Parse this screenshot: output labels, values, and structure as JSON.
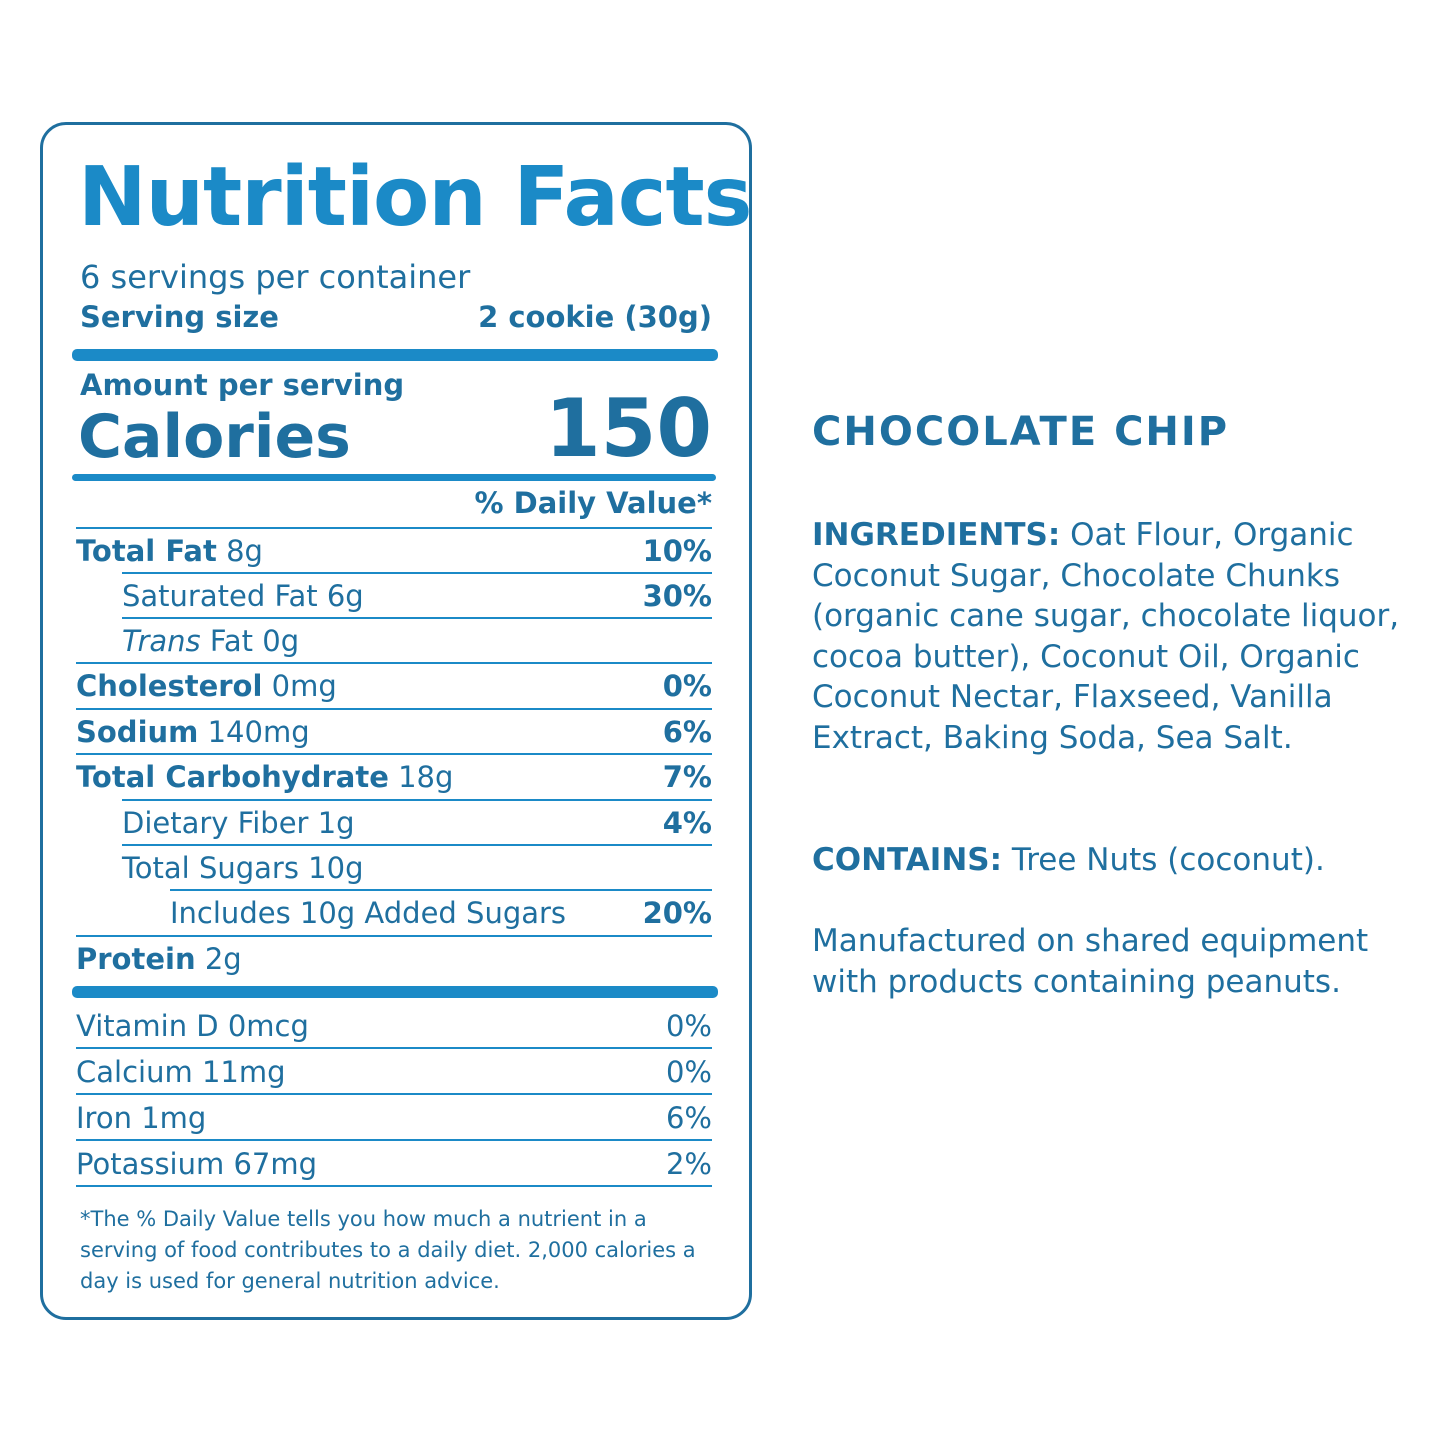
{
  "label": {
    "title": "Nutrition Facts",
    "servings_per_container": "6 servings per container",
    "serving_size_label": "Serving size",
    "serving_size_value": "2 cookie (30g)",
    "amount_per_serving": "Amount per serving",
    "calories_label": "Calories",
    "calories_value": "150",
    "daily_value_header": "% Daily Value*",
    "nutrients": [
      {
        "name": "Total Fat",
        "amount": "8g",
        "dv": "10%"
      },
      {
        "name": "Saturated Fat",
        "amount": "6g",
        "dv": "30%"
      },
      {
        "name_italic": "Trans",
        "name": "Fat",
        "amount": "0g",
        "dv": ""
      },
      {
        "name": "Cholesterol",
        "amount": "0mg",
        "dv": "0%"
      },
      {
        "name": "Sodium",
        "amount": "140mg",
        "dv": "6%"
      },
      {
        "name": "Total Carbohydrate",
        "amount": "18g",
        "dv": "7%"
      },
      {
        "name": "Dietary Fiber",
        "amount": "1g",
        "dv": "4%"
      },
      {
        "name": "Total Sugars",
        "amount": "10g",
        "dv": ""
      },
      {
        "name": "Includes 10g Added Sugars",
        "amount": "",
        "dv": "20%"
      },
      {
        "name": "Protein",
        "amount": "2g",
        "dv": ""
      }
    ],
    "vitamins": [
      {
        "name": "Vitamin D",
        "amount": "0mcg",
        "dv": "0%"
      },
      {
        "name": "Calcium",
        "amount": "11mg",
        "dv": "0%"
      },
      {
        "name": "Iron",
        "amount": "1mg",
        "dv": "6%"
      },
      {
        "name": "Potassium",
        "amount": "67mg",
        "dv": "2%"
      }
    ],
    "footnote": "*The % Daily Value tells you how much a nutrient in a serving of food contributes to a daily diet. 2,000 calories a day is used for general nutrition advice."
  },
  "product": {
    "flavor": "CHOCOLATE CHIP",
    "ingredients_label": "INGREDIENTS:",
    "ingredients": "Oat Flour, Organic Coconut Sugar, Chocolate Chunks (organic cane sugar, chocolate liquor, cocoa butter), Coconut Oil, Organic Coconut Nectar, Flaxseed, Vanilla Extract, Baking Soda, Sea Salt.",
    "contains_label": "CONTAINS:",
    "contains": "Tree Nuts (coconut).",
    "manufactured_note": "Manufactured on shared equipment with products containing peanuts."
  }
}
